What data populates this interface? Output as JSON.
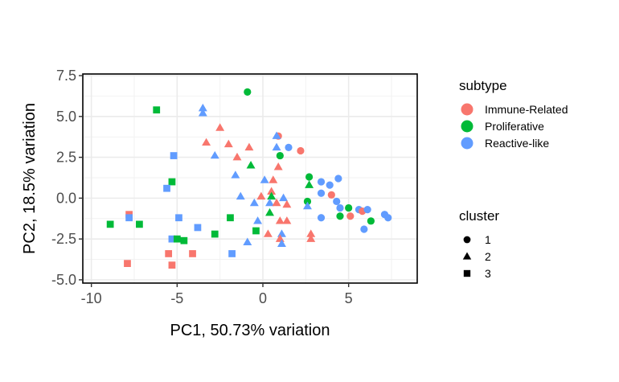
{
  "chart_data": {
    "type": "scatter",
    "title": "",
    "xlabel": "PC1, 50.73% variation",
    "ylabel": "PC2, 18.5% variation",
    "xlim": [
      -10.5,
      9.0
    ],
    "ylim": [
      -5.2,
      7.6
    ],
    "x_ticks": [
      -10,
      -5,
      0,
      5
    ],
    "x_tick_labels": [
      "-10",
      "-5",
      "0",
      "5"
    ],
    "y_ticks": [
      -5,
      -2.5,
      0,
      2.5,
      5,
      7.5
    ],
    "y_tick_labels": [
      "-5.0",
      "-2.5",
      "0.0",
      "2.5",
      "5.0",
      "7.5"
    ],
    "grid": true,
    "legend_position": "right",
    "color_legend": {
      "title": "subtype",
      "entries": [
        {
          "label": "Immune-Related",
          "color": "#F8766D"
        },
        {
          "label": "Proliferative",
          "color": "#00BA38"
        },
        {
          "label": "Reactive-like",
          "color": "#619CFF"
        }
      ]
    },
    "shape_legend": {
      "title": "cluster",
      "entries": [
        {
          "label": "1",
          "shape": "circle"
        },
        {
          "label": "2",
          "shape": "triangle"
        },
        {
          "label": "3",
          "shape": "square"
        }
      ]
    },
    "points": [
      {
        "x": -0.9,
        "y": 6.5,
        "subtype": "Proliferative",
        "cluster": "1"
      },
      {
        "x": 0.9,
        "y": 3.8,
        "subtype": "Immune-Related",
        "cluster": "1"
      },
      {
        "x": 1.5,
        "y": 3.1,
        "subtype": "Reactive-like",
        "cluster": "1"
      },
      {
        "x": 2.2,
        "y": 2.9,
        "subtype": "Immune-Related",
        "cluster": "1"
      },
      {
        "x": 1.0,
        "y": 2.6,
        "subtype": "Proliferative",
        "cluster": "1"
      },
      {
        "x": 2.7,
        "y": 1.3,
        "subtype": "Proliferative",
        "cluster": "1"
      },
      {
        "x": 3.4,
        "y": 1.0,
        "subtype": "Reactive-like",
        "cluster": "1"
      },
      {
        "x": 3.9,
        "y": 0.8,
        "subtype": "Reactive-like",
        "cluster": "1"
      },
      {
        "x": 4.4,
        "y": 1.2,
        "subtype": "Reactive-like",
        "cluster": "1"
      },
      {
        "x": 3.4,
        "y": 0.3,
        "subtype": "Reactive-like",
        "cluster": "1"
      },
      {
        "x": 4.0,
        "y": 0.2,
        "subtype": "Immune-Related",
        "cluster": "1"
      },
      {
        "x": 4.3,
        "y": -0.2,
        "subtype": "Reactive-like",
        "cluster": "1"
      },
      {
        "x": 2.6,
        "y": -0.2,
        "subtype": "Proliferative",
        "cluster": "1"
      },
      {
        "x": 4.5,
        "y": -0.6,
        "subtype": "Reactive-like",
        "cluster": "1"
      },
      {
        "x": 5.0,
        "y": -0.6,
        "subtype": "Proliferative",
        "cluster": "1"
      },
      {
        "x": 5.6,
        "y": -0.7,
        "subtype": "Reactive-like",
        "cluster": "1"
      },
      {
        "x": 5.8,
        "y": -0.8,
        "subtype": "Immune-Related",
        "cluster": "1"
      },
      {
        "x": 6.1,
        "y": -0.7,
        "subtype": "Reactive-like",
        "cluster": "1"
      },
      {
        "x": 5.1,
        "y": -1.1,
        "subtype": "Immune-Related",
        "cluster": "1"
      },
      {
        "x": 4.5,
        "y": -1.1,
        "subtype": "Proliferative",
        "cluster": "1"
      },
      {
        "x": 3.4,
        "y": -1.2,
        "subtype": "Reactive-like",
        "cluster": "1"
      },
      {
        "x": 6.3,
        "y": -1.4,
        "subtype": "Proliferative",
        "cluster": "1"
      },
      {
        "x": 7.1,
        "y": -1.0,
        "subtype": "Reactive-like",
        "cluster": "1"
      },
      {
        "x": 7.3,
        "y": -1.2,
        "subtype": "Reactive-like",
        "cluster": "1"
      },
      {
        "x": 5.9,
        "y": -1.9,
        "subtype": "Reactive-like",
        "cluster": "1"
      },
      {
        "x": -3.5,
        "y": 5.5,
        "subtype": "Reactive-like",
        "cluster": "2"
      },
      {
        "x": -3.5,
        "y": 5.2,
        "subtype": "Reactive-like",
        "cluster": "2"
      },
      {
        "x": -2.5,
        "y": 4.3,
        "subtype": "Immune-Related",
        "cluster": "2"
      },
      {
        "x": -3.3,
        "y": 3.4,
        "subtype": "Immune-Related",
        "cluster": "2"
      },
      {
        "x": -2.0,
        "y": 3.3,
        "subtype": "Immune-Related",
        "cluster": "2"
      },
      {
        "x": -0.8,
        "y": 3.1,
        "subtype": "Immune-Related",
        "cluster": "2"
      },
      {
        "x": 0.8,
        "y": 3.8,
        "subtype": "Reactive-like",
        "cluster": "2"
      },
      {
        "x": 0.8,
        "y": 3.1,
        "subtype": "Reactive-like",
        "cluster": "2"
      },
      {
        "x": -2.8,
        "y": 2.6,
        "subtype": "Reactive-like",
        "cluster": "2"
      },
      {
        "x": -1.5,
        "y": 2.5,
        "subtype": "Immune-Related",
        "cluster": "2"
      },
      {
        "x": -0.7,
        "y": 2.0,
        "subtype": "Proliferative",
        "cluster": "2"
      },
      {
        "x": 0.9,
        "y": 1.9,
        "subtype": "Immune-Related",
        "cluster": "2"
      },
      {
        "x": -1.6,
        "y": 1.4,
        "subtype": "Reactive-like",
        "cluster": "2"
      },
      {
        "x": 0.1,
        "y": 1.1,
        "subtype": "Reactive-like",
        "cluster": "2"
      },
      {
        "x": 0.6,
        "y": 1.1,
        "subtype": "Immune-Related",
        "cluster": "2"
      },
      {
        "x": 2.7,
        "y": 0.8,
        "subtype": "Proliferative",
        "cluster": "2"
      },
      {
        "x": 0.5,
        "y": 0.4,
        "subtype": "Immune-Related",
        "cluster": "2"
      },
      {
        "x": 0.5,
        "y": 0.1,
        "subtype": "Proliferative",
        "cluster": "2"
      },
      {
        "x": -1.3,
        "y": 0.1,
        "subtype": "Reactive-like",
        "cluster": "2"
      },
      {
        "x": -0.1,
        "y": 0.1,
        "subtype": "Immune-Related",
        "cluster": "2"
      },
      {
        "x": 1.2,
        "y": 0.0,
        "subtype": "Reactive-like",
        "cluster": "2"
      },
      {
        "x": -0.5,
        "y": -0.3,
        "subtype": "Reactive-like",
        "cluster": "2"
      },
      {
        "x": 0.4,
        "y": -0.3,
        "subtype": "Reactive-like",
        "cluster": "2"
      },
      {
        "x": 0.8,
        "y": -0.3,
        "subtype": "Immune-Related",
        "cluster": "2"
      },
      {
        "x": 1.4,
        "y": -0.4,
        "subtype": "Immune-Related",
        "cluster": "2"
      },
      {
        "x": 2.6,
        "y": -0.5,
        "subtype": "Reactive-like",
        "cluster": "2"
      },
      {
        "x": 0.4,
        "y": -0.9,
        "subtype": "Proliferative",
        "cluster": "2"
      },
      {
        "x": -0.3,
        "y": -1.4,
        "subtype": "Reactive-like",
        "cluster": "2"
      },
      {
        "x": 1.0,
        "y": -1.4,
        "subtype": "Immune-Related",
        "cluster": "2"
      },
      {
        "x": 1.4,
        "y": -1.4,
        "subtype": "Immune-Related",
        "cluster": "2"
      },
      {
        "x": 0.3,
        "y": -2.2,
        "subtype": "Immune-Related",
        "cluster": "2"
      },
      {
        "x": 1.1,
        "y": -2.2,
        "subtype": "Reactive-like",
        "cluster": "2"
      },
      {
        "x": 2.8,
        "y": -2.2,
        "subtype": "Immune-Related",
        "cluster": "2"
      },
      {
        "x": 1.0,
        "y": -2.5,
        "subtype": "Immune-Related",
        "cluster": "2"
      },
      {
        "x": 2.8,
        "y": -2.5,
        "subtype": "Immune-Related",
        "cluster": "2"
      },
      {
        "x": -0.9,
        "y": -2.7,
        "subtype": "Reactive-like",
        "cluster": "2"
      },
      {
        "x": 1.1,
        "y": -2.8,
        "subtype": "Reactive-like",
        "cluster": "2"
      },
      {
        "x": -6.2,
        "y": 5.4,
        "subtype": "Proliferative",
        "cluster": "3"
      },
      {
        "x": -5.2,
        "y": 2.6,
        "subtype": "Reactive-like",
        "cluster": "3"
      },
      {
        "x": -5.3,
        "y": 1.0,
        "subtype": "Proliferative",
        "cluster": "3"
      },
      {
        "x": -5.6,
        "y": 0.6,
        "subtype": "Reactive-like",
        "cluster": "3"
      },
      {
        "x": -7.8,
        "y": -1.0,
        "subtype": "Immune-Related",
        "cluster": "3"
      },
      {
        "x": -7.8,
        "y": -1.2,
        "subtype": "Reactive-like",
        "cluster": "3"
      },
      {
        "x": -8.9,
        "y": -1.6,
        "subtype": "Proliferative",
        "cluster": "3"
      },
      {
        "x": -7.2,
        "y": -1.6,
        "subtype": "Proliferative",
        "cluster": "3"
      },
      {
        "x": -4.9,
        "y": -1.2,
        "subtype": "Reactive-like",
        "cluster": "3"
      },
      {
        "x": -1.9,
        "y": -1.2,
        "subtype": "Proliferative",
        "cluster": "3"
      },
      {
        "x": -3.8,
        "y": -1.8,
        "subtype": "Reactive-like",
        "cluster": "3"
      },
      {
        "x": -0.4,
        "y": -2.0,
        "subtype": "Proliferative",
        "cluster": "3"
      },
      {
        "x": -2.8,
        "y": -2.2,
        "subtype": "Proliferative",
        "cluster": "3"
      },
      {
        "x": -5.3,
        "y": -2.5,
        "subtype": "Reactive-like",
        "cluster": "3"
      },
      {
        "x": -5.0,
        "y": -2.5,
        "subtype": "Proliferative",
        "cluster": "3"
      },
      {
        "x": -4.6,
        "y": -2.6,
        "subtype": "Proliferative",
        "cluster": "3"
      },
      {
        "x": -5.5,
        "y": -3.4,
        "subtype": "Immune-Related",
        "cluster": "3"
      },
      {
        "x": -4.1,
        "y": -3.4,
        "subtype": "Immune-Related",
        "cluster": "3"
      },
      {
        "x": -1.8,
        "y": -3.4,
        "subtype": "Reactive-like",
        "cluster": "3"
      },
      {
        "x": -7.9,
        "y": -4.0,
        "subtype": "Immune-Related",
        "cluster": "3"
      },
      {
        "x": -5.3,
        "y": -4.1,
        "subtype": "Immune-Related",
        "cluster": "3"
      }
    ]
  }
}
